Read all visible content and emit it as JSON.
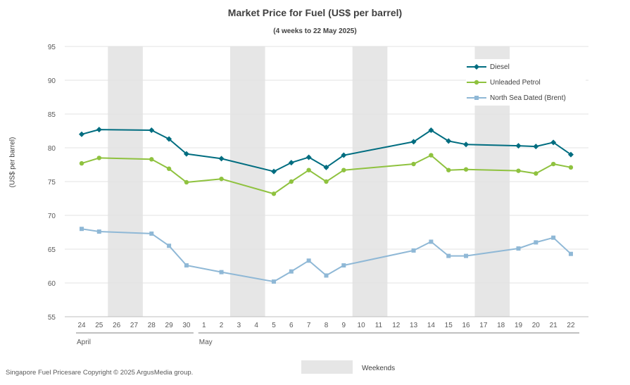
{
  "chart_data": {
    "type": "line",
    "title": "Market Price for Fuel (US$ per barrel)",
    "subtitle": "(4 weeks to 22 May 2025)",
    "xlabel": "",
    "ylabel": "(US$ per barrel)",
    "ylim": [
      55,
      95
    ],
    "yticks": [
      55,
      60,
      65,
      70,
      75,
      80,
      85,
      90,
      95
    ],
    "grid": true,
    "legend_position": "top-right",
    "x": [
      "24",
      "25",
      "26",
      "27",
      "28",
      "29",
      "30",
      "1",
      "2",
      "3",
      "4",
      "5",
      "6",
      "7",
      "8",
      "9",
      "10",
      "11",
      "12",
      "13",
      "14",
      "15",
      "16",
      "17",
      "18",
      "19",
      "20",
      "21",
      "22"
    ],
    "month_labels": [
      {
        "label": "April",
        "start": "24",
        "end": "30"
      },
      {
        "label": "May",
        "start": "1",
        "end": "22"
      }
    ],
    "weekends": [
      [
        "26",
        "27"
      ],
      [
        "3",
        "4"
      ],
      [
        "10",
        "11"
      ],
      [
        "17",
        "18"
      ]
    ],
    "weekend_label": "Weekends",
    "series": [
      {
        "name": "Diesel",
        "color": "#006d80",
        "marker": "diamond",
        "points": [
          [
            "24",
            82.0
          ],
          [
            "25",
            82.7
          ],
          [
            "28",
            82.6
          ],
          [
            "29",
            81.3
          ],
          [
            "30",
            79.1
          ],
          [
            "2",
            78.4
          ],
          [
            "5",
            76.5
          ],
          [
            "6",
            77.8
          ],
          [
            "7",
            78.6
          ],
          [
            "8",
            77.1
          ],
          [
            "9",
            78.9
          ],
          [
            "13",
            80.9
          ],
          [
            "14",
            82.6
          ],
          [
            "15",
            81.0
          ],
          [
            "16",
            80.5
          ],
          [
            "19",
            80.3
          ],
          [
            "20",
            80.2
          ],
          [
            "21",
            80.8
          ],
          [
            "22",
            79.0
          ]
        ]
      },
      {
        "name": "Unleaded Petrol",
        "color": "#8fc23f",
        "marker": "circle",
        "points": [
          [
            "24",
            77.7
          ],
          [
            "25",
            78.5
          ],
          [
            "28",
            78.3
          ],
          [
            "29",
            76.9
          ],
          [
            "30",
            74.9
          ],
          [
            "2",
            75.4
          ],
          [
            "5",
            73.2
          ],
          [
            "6",
            75.0
          ],
          [
            "7",
            76.7
          ],
          [
            "8",
            75.0
          ],
          [
            "9",
            76.7
          ],
          [
            "13",
            77.6
          ],
          [
            "14",
            78.9
          ],
          [
            "15",
            76.7
          ],
          [
            "16",
            76.8
          ],
          [
            "19",
            76.6
          ],
          [
            "20",
            76.2
          ],
          [
            "21",
            77.6
          ],
          [
            "22",
            77.1
          ]
        ]
      },
      {
        "name": "North Sea Dated (Brent)",
        "color": "#8fb8d6",
        "marker": "square",
        "points": [
          [
            "24",
            68.0
          ],
          [
            "25",
            67.6
          ],
          [
            "28",
            67.3
          ],
          [
            "29",
            65.5
          ],
          [
            "30",
            62.6
          ],
          [
            "2",
            61.6
          ],
          [
            "5",
            60.2
          ],
          [
            "6",
            61.7
          ],
          [
            "7",
            63.3
          ],
          [
            "8",
            61.1
          ],
          [
            "9",
            62.6
          ],
          [
            "13",
            64.8
          ],
          [
            "14",
            66.1
          ],
          [
            "15",
            64.0
          ],
          [
            "16",
            64.0
          ],
          [
            "19",
            65.1
          ],
          [
            "20",
            66.0
          ],
          [
            "21",
            66.7
          ],
          [
            "22",
            64.3
          ]
        ]
      }
    ]
  },
  "footer": "Singapore Fuel Pricesare Copyright © 2025 ArgusMedia group."
}
